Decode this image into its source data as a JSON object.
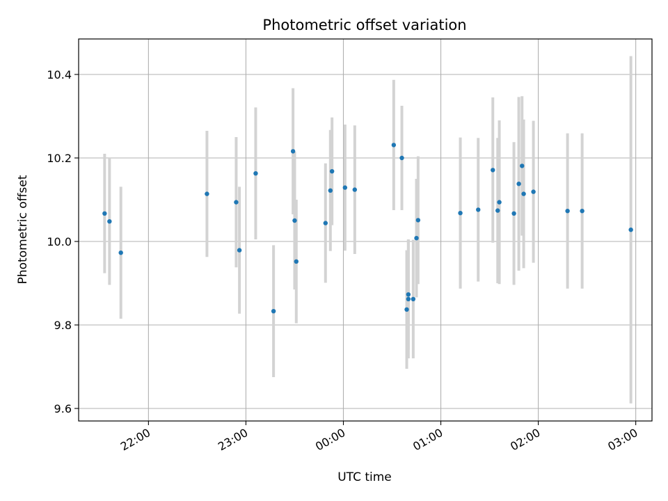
{
  "chart_data": {
    "type": "scatter",
    "title": "Photometric offset variation",
    "xlabel": "UTC time",
    "ylabel": "Photometric offset",
    "grid": true,
    "x_type": "time",
    "xlim": [
      "21:17",
      "03:10"
    ],
    "ylim": [
      9.57,
      10.485
    ],
    "xticks": [
      "22:00",
      "23:00",
      "00:00",
      "01:00",
      "02:00",
      "03:00"
    ],
    "yticks": [
      "9.6",
      "9.8",
      "10.0",
      "10.2",
      "10.4"
    ],
    "marker_color": "#1f77b4",
    "errorbar_color": "#d3d3d3",
    "points": [
      {
        "x": "21:33",
        "y": 10.067,
        "err": 0.143
      },
      {
        "x": "21:36",
        "y": 10.048,
        "err": 0.152
      },
      {
        "x": "21:43",
        "y": 9.973,
        "err": 0.158
      },
      {
        "x": "22:36",
        "y": 10.114,
        "err": 0.151
      },
      {
        "x": "22:54",
        "y": 10.094,
        "err": 0.156
      },
      {
        "x": "22:56",
        "y": 9.979,
        "err": 0.152
      },
      {
        "x": "23:06",
        "y": 10.163,
        "err": 0.158
      },
      {
        "x": "23:17",
        "y": 9.833,
        "err": 0.158
      },
      {
        "x": "23:29",
        "y": 10.216,
        "err": 0.151
      },
      {
        "x": "23:30",
        "y": 10.05,
        "err": 0.165
      },
      {
        "x": "23:31",
        "y": 9.952,
        "err": 0.148
      },
      {
        "x": "23:49",
        "y": 10.044,
        "err": 0.143
      },
      {
        "x": "23:52",
        "y": 10.122,
        "err": 0.145
      },
      {
        "x": "23:53",
        "y": 10.168,
        "err": 0.129
      },
      {
        "x": "00:01",
        "y": 10.129,
        "err": 0.151
      },
      {
        "x": "00:07",
        "y": 10.124,
        "err": 0.154
      },
      {
        "x": "00:31",
        "y": 10.231,
        "err": 0.156
      },
      {
        "x": "00:36",
        "y": 10.2,
        "err": 0.125
      },
      {
        "x": "00:39",
        "y": 9.837,
        "err": 0.142
      },
      {
        "x": "00:40",
        "y": 9.862,
        "err": 0.142
      },
      {
        "x": "00:40",
        "y": 9.873,
        "err": 0.132
      },
      {
        "x": "00:43",
        "y": 9.862,
        "err": 0.142
      },
      {
        "x": "00:45",
        "y": 10.008,
        "err": 0.142
      },
      {
        "x": "00:46",
        "y": 10.051,
        "err": 0.153
      },
      {
        "x": "01:12",
        "y": 10.068,
        "err": 0.181
      },
      {
        "x": "01:23",
        "y": 10.076,
        "err": 0.172
      },
      {
        "x": "01:32",
        "y": 10.171,
        "err": 0.174
      },
      {
        "x": "01:35",
        "y": 10.074,
        "err": 0.174
      },
      {
        "x": "01:36",
        "y": 10.094,
        "err": 0.196
      },
      {
        "x": "01:45",
        "y": 10.067,
        "err": 0.171
      },
      {
        "x": "01:48",
        "y": 10.138,
        "err": 0.208
      },
      {
        "x": "01:50",
        "y": 10.181,
        "err": 0.167
      },
      {
        "x": "01:51",
        "y": 10.114,
        "err": 0.178
      },
      {
        "x": "01:57",
        "y": 10.119,
        "err": 0.17
      },
      {
        "x": "02:18",
        "y": 10.073,
        "err": 0.186
      },
      {
        "x": "02:27",
        "y": 10.073,
        "err": 0.186
      },
      {
        "x": "02:57",
        "y": 10.028,
        "err": 0.416
      }
    ]
  }
}
